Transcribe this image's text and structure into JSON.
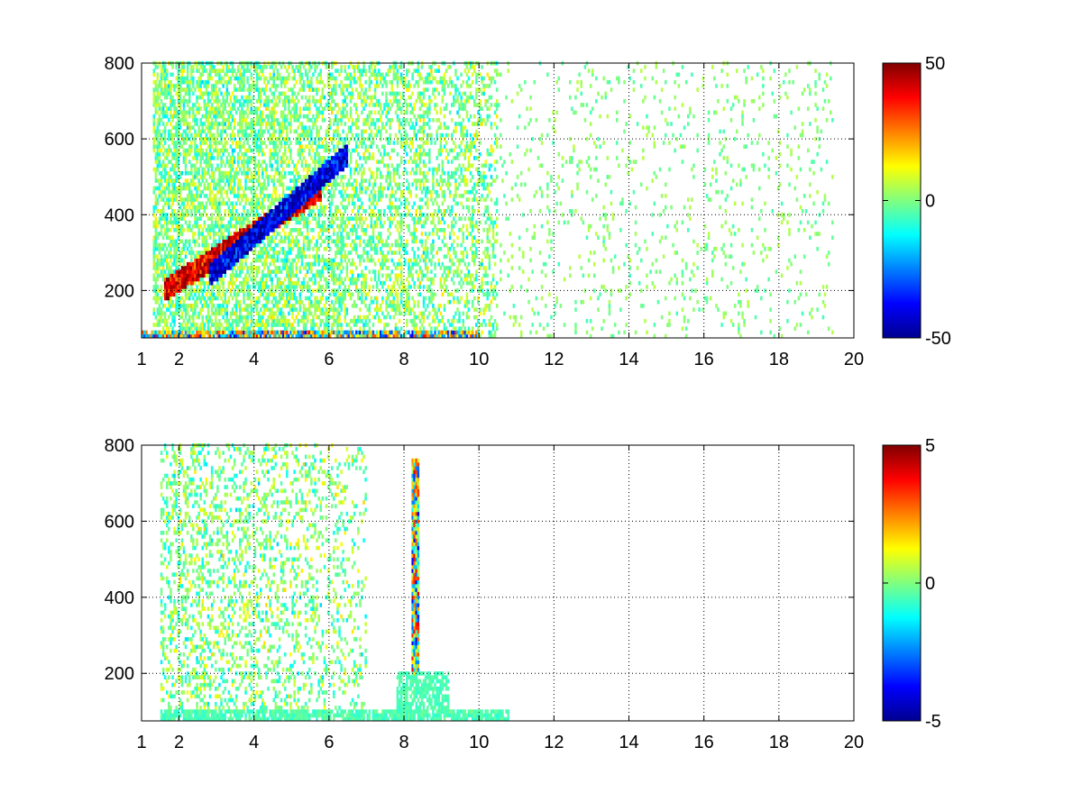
{
  "chart_data": [
    {
      "type": "heatmap",
      "title": "",
      "xlabel": "",
      "ylabel": "",
      "xlim": [
        1,
        20
      ],
      "ylim": [
        75,
        800
      ],
      "xticks": [
        1,
        2,
        4,
        6,
        8,
        10,
        12,
        14,
        16,
        18,
        20
      ],
      "xtick_labels": [
        "1",
        "2",
        "4",
        "6",
        "8",
        "10",
        "12",
        "14",
        "16",
        "18",
        "20"
      ],
      "yticks": [
        200,
        400,
        600,
        800
      ],
      "ytick_labels": [
        "200",
        "400",
        "600",
        "800"
      ],
      "grid": true,
      "grid_style": "dotted",
      "colormap": "jet",
      "clim": [
        -50,
        50
      ],
      "colorbar_ticks": [
        -50,
        0,
        50
      ],
      "colorbar_labels": [
        "-50",
        "0",
        "50"
      ],
      "features": [
        {
          "kind": "band",
          "x": [
            1.6,
            5.8
          ],
          "y": [
            200,
            470
          ],
          "value": 40,
          "note": "rising positive (red) ridge"
        },
        {
          "kind": "band",
          "x": [
            2.8,
            6.5
          ],
          "y": [
            240,
            560
          ],
          "value": -40,
          "note": "rising negative (blue) ridge above red ridge"
        },
        {
          "kind": "row",
          "x": [
            1.0,
            10.0
          ],
          "y": 85,
          "value": 30,
          "note": "strong alternating values near bottom edge"
        },
        {
          "kind": "region",
          "x": [
            1.3,
            10.5
          ],
          "y": [
            75,
            800
          ],
          "density": "high",
          "note": "dense speckle region"
        },
        {
          "kind": "columns",
          "x": [
            10.5,
            19.5
          ],
          "y": [
            75,
            800
          ],
          "density": "sparse",
          "note": "sparse speckle, mostly near zero"
        }
      ]
    },
    {
      "type": "heatmap",
      "title": "",
      "xlabel": "",
      "ylabel": "",
      "xlim": [
        1,
        20
      ],
      "ylim": [
        75,
        800
      ],
      "xticks": [
        1,
        2,
        4,
        6,
        8,
        10,
        12,
        14,
        16,
        18,
        20
      ],
      "xtick_labels": [
        "1",
        "2",
        "4",
        "6",
        "8",
        "10",
        "12",
        "14",
        "16",
        "18",
        "20"
      ],
      "yticks": [
        200,
        400,
        600,
        800
      ],
      "ytick_labels": [
        "200",
        "400",
        "600",
        "800"
      ],
      "grid": true,
      "grid_style": "dotted",
      "colormap": "jet",
      "clim": [
        -5,
        5
      ],
      "colorbar_ticks": [
        -5,
        0,
        5
      ],
      "colorbar_labels": [
        "-5",
        "0",
        "5"
      ],
      "features": [
        {
          "kind": "region",
          "x": [
            1.5,
            7.0
          ],
          "y": [
            75,
            800
          ],
          "density": "medium",
          "note": "speckle concentrated at low x"
        },
        {
          "kind": "column",
          "x": 8.3,
          "y": [
            200,
            760
          ],
          "value": 3,
          "note": "narrow colored column"
        },
        {
          "kind": "block",
          "x": [
            7.8,
            9.2
          ],
          "y": [
            80,
            200
          ],
          "value": -0.5,
          "note": "green block"
        },
        {
          "kind": "row",
          "x": [
            1.5,
            10.8
          ],
          "y": 90,
          "value": -0.5,
          "note": "green strip near bottom"
        }
      ]
    }
  ]
}
